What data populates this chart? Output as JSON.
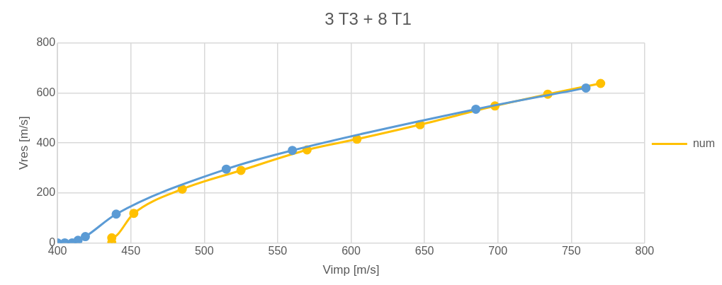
{
  "chart_data": {
    "type": "line",
    "title": "3 T3 + 8 T1",
    "xlabel": "Vimp [m/s]",
    "ylabel": "Vres [m/s]",
    "xlim": [
      400,
      800
    ],
    "xticks": [
      400,
      450,
      500,
      550,
      600,
      650,
      700,
      750,
      800
    ],
    "ylim": [
      0,
      800
    ],
    "yticks": [
      0,
      200,
      400,
      600,
      800
    ],
    "grid": true,
    "legend": "right",
    "marker": "circle",
    "series": [
      {
        "color": "#5b9bd5",
        "x": [
          400,
          405,
          410,
          414,
          419,
          440,
          515,
          560,
          685,
          760
        ],
        "values": [
          0,
          0,
          0,
          10,
          25,
          115,
          295,
          370,
          535,
          620
        ]
      },
      {
        "name": "num",
        "color": "#ffc000",
        "x": [
          437,
          437,
          452,
          485,
          525,
          570,
          604,
          647,
          698,
          734,
          770
        ],
        "values": [
          0,
          20,
          118,
          215,
          290,
          372,
          415,
          473,
          548,
          595,
          638
        ]
      }
    ]
  }
}
